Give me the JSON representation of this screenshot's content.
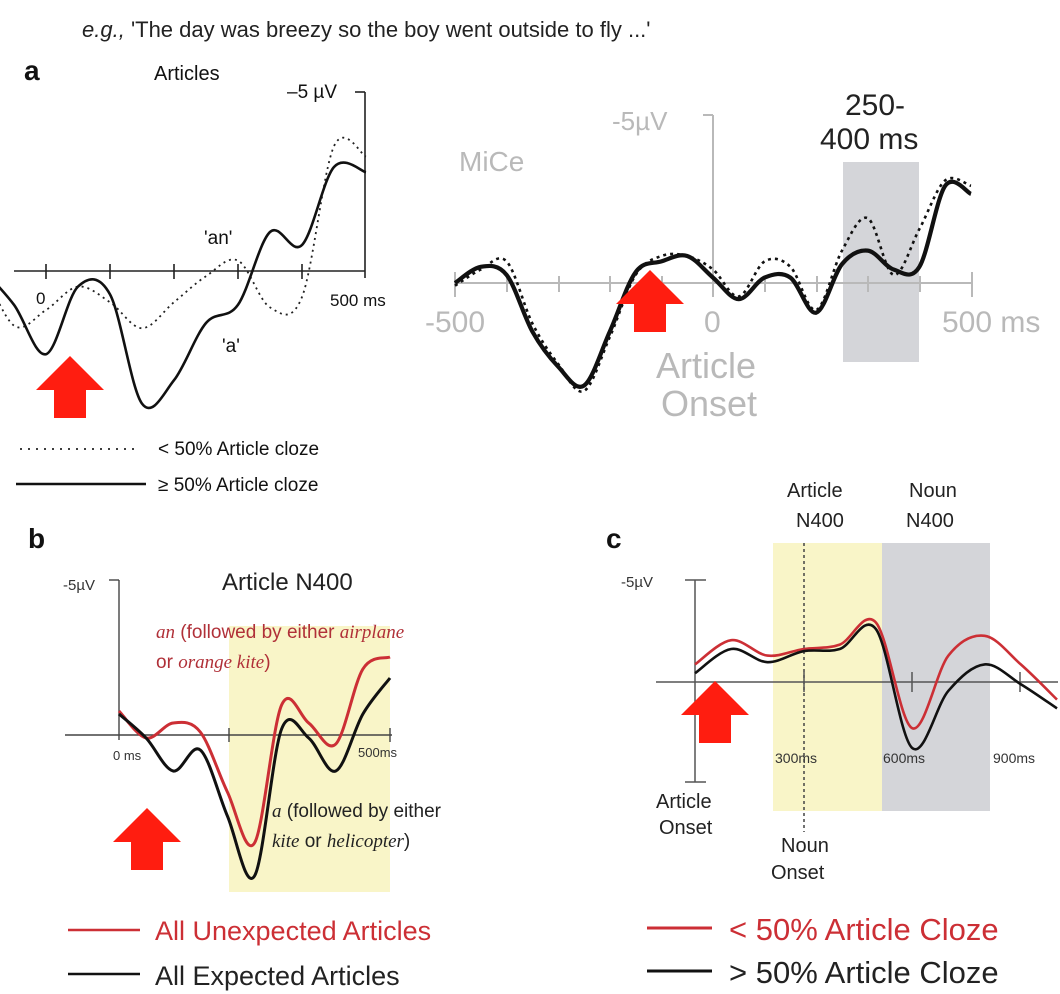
{
  "caption": {
    "prefix": "e.g.,",
    "sentence": "'The day was breezy so the boy went outside to fly ...'"
  },
  "colors": {
    "expected": "#111111",
    "unexpected": "#cc2f35",
    "arrow": "#ff1d10",
    "window_yellow": "#f9f5c8",
    "window_gray": "#d4d5d9",
    "faded": "#b9b9b9"
  },
  "panels": {
    "a": {
      "letter": "a",
      "title": "Articles",
      "yscale": "–5 µV",
      "x_end_label": "500 ms",
      "zero_label": "0",
      "labels": {
        "an": "'an'",
        "a": "'a'"
      },
      "legend": {
        "low": "< 50% Article cloze",
        "high": "≥ 50% Article cloze"
      }
    },
    "a2": {
      "name": "MiCe",
      "yscale": "-5µV",
      "window_label_1": "250-",
      "window_label_2": "400 ms",
      "x_left": "-500",
      "x_zero": "0",
      "x_right": "500 ms",
      "onset_1": "Article",
      "onset_2": "Onset"
    },
    "b": {
      "letter": "b",
      "title": "Article N400",
      "yscale": "-5µV",
      "x_zero": "0 ms",
      "x_end": "500ms",
      "an_word": "an",
      "an_text_1": " (followed by either ",
      "an_airplane": "airplane",
      "an_or": "or ",
      "an_kite": "orange kite",
      "an_close": ")",
      "a_word": "a",
      "a_text_1": " (followed by either",
      "a_kite": "kite",
      "a_or": " or ",
      "a_heli": "helicopter",
      "a_close": ")",
      "legend": {
        "unexpected": "All Unexpected Articles",
        "expected": "All Expected Articles"
      }
    },
    "c": {
      "letter": "c",
      "yscale": "-5µV",
      "article_n400_1": "Article",
      "article_n400_2": "N400",
      "noun_n400_1": "Noun",
      "noun_n400_2": "N400",
      "tick_300": "300ms",
      "tick_600": "600ms",
      "tick_900": "900ms",
      "onset_1": "Article",
      "onset_2": "Onset",
      "noun_onset_1": "Noun",
      "noun_onset_2": "Onset",
      "legend": {
        "low": "< 50% Article Cloze",
        "high": "> 50% Article Cloze"
      }
    }
  },
  "chart_data": [
    {
      "type": "line",
      "panel": "a",
      "title": "Articles",
      "xlabel": "",
      "ylabel": "",
      "x_ms": [
        -100,
        -50,
        0,
        50,
        100,
        150,
        200,
        250,
        300,
        350,
        400,
        450,
        500
      ],
      "series": [
        {
          "name": "< 50% Article cloze",
          "style": "dotted",
          "values": [
            -0.2,
            2.1,
            1.5,
            0.6,
            1.2,
            2.2,
            1.2,
            0.2,
            -0.4,
            1.4,
            1.0,
            -4.8,
            -4.4
          ]
        },
        {
          "name": "≥ 50% Article cloze",
          "style": "solid",
          "values": [
            -0.1,
            1.3,
            3.2,
            0.6,
            0.9,
            5.1,
            4.2,
            2.0,
            1.3,
            -1.5,
            -1.0,
            -4.0,
            -3.8
          ]
        }
      ]
    },
    {
      "type": "line",
      "panel": "a-right",
      "title": "MiCe",
      "xlabel": "Article Onset",
      "ylabel": "",
      "window_ms": [
        250,
        400
      ],
      "x_ms": [
        -500,
        -450,
        -400,
        -350,
        -300,
        -250,
        -200,
        -150,
        -100,
        -50,
        0,
        50,
        100,
        150,
        200,
        250,
        300,
        350,
        400,
        450,
        500
      ],
      "series": [
        {
          "name": "dotted",
          "style": "dotted",
          "values": [
            0.1,
            -0.5,
            -0.8,
            1.5,
            3.0,
            4.0,
            2.0,
            -0.3,
            -1.0,
            -1.0,
            -0.5,
            0.5,
            -0.8,
            -0.6,
            1.0,
            -1.2,
            -2.4,
            -0.3,
            -2.0,
            -3.8,
            -3.6
          ]
        },
        {
          "name": "solid",
          "style": "solid",
          "values": [
            0.0,
            -0.6,
            -0.3,
            1.8,
            3.1,
            3.8,
            1.8,
            -0.4,
            -0.8,
            -1.0,
            -0.2,
            0.6,
            -0.2,
            -0.2,
            1.1,
            -0.7,
            -1.2,
            -0.5,
            -0.6,
            -3.6,
            -3.3
          ]
        }
      ]
    },
    {
      "type": "line",
      "panel": "b",
      "title": "Article N400",
      "xlabel": "",
      "ylabel": "",
      "window_ms": [
        250,
        500
      ],
      "x_ms": [
        0,
        50,
        100,
        150,
        200,
        250,
        300,
        350,
        400,
        450,
        500
      ],
      "series": [
        {
          "name": "All Unexpected Articles",
          "color": "#cc2f35",
          "values": [
            -0.8,
            0.1,
            -0.4,
            -0.1,
            1.9,
            3.6,
            -1.0,
            -0.4,
            0.3,
            -2.2,
            -2.6
          ]
        },
        {
          "name": "All Expected Articles",
          "color": "#111111",
          "values": [
            -0.7,
            0.1,
            1.2,
            0.5,
            2.7,
            4.7,
            -0.2,
            0.1,
            1.2,
            -0.7,
            -1.9
          ]
        }
      ]
    },
    {
      "type": "line",
      "panel": "c",
      "title": "",
      "xlabel": "",
      "ylabel": "",
      "windows_ms": {
        "article_n400": [
          300,
          500
        ],
        "noun_n400": [
          500,
          900
        ]
      },
      "x_ms": [
        0,
        100,
        200,
        300,
        400,
        500,
        600,
        700,
        800,
        900,
        1000
      ],
      "series": [
        {
          "name": "< 50% Article Cloze",
          "color": "#cc2f35",
          "values": [
            -0.8,
            -1.9,
            -1.2,
            -1.5,
            -1.7,
            -2.7,
            2.1,
            -1.2,
            -2.1,
            -0.8,
            0.8
          ]
        },
        {
          "name": "> 50% Article Cloze",
          "color": "#111111",
          "values": [
            -0.4,
            -1.5,
            -0.9,
            -1.4,
            -1.5,
            -2.4,
            3.0,
            0.4,
            -0.8,
            0.1,
            1.2
          ]
        }
      ]
    }
  ]
}
